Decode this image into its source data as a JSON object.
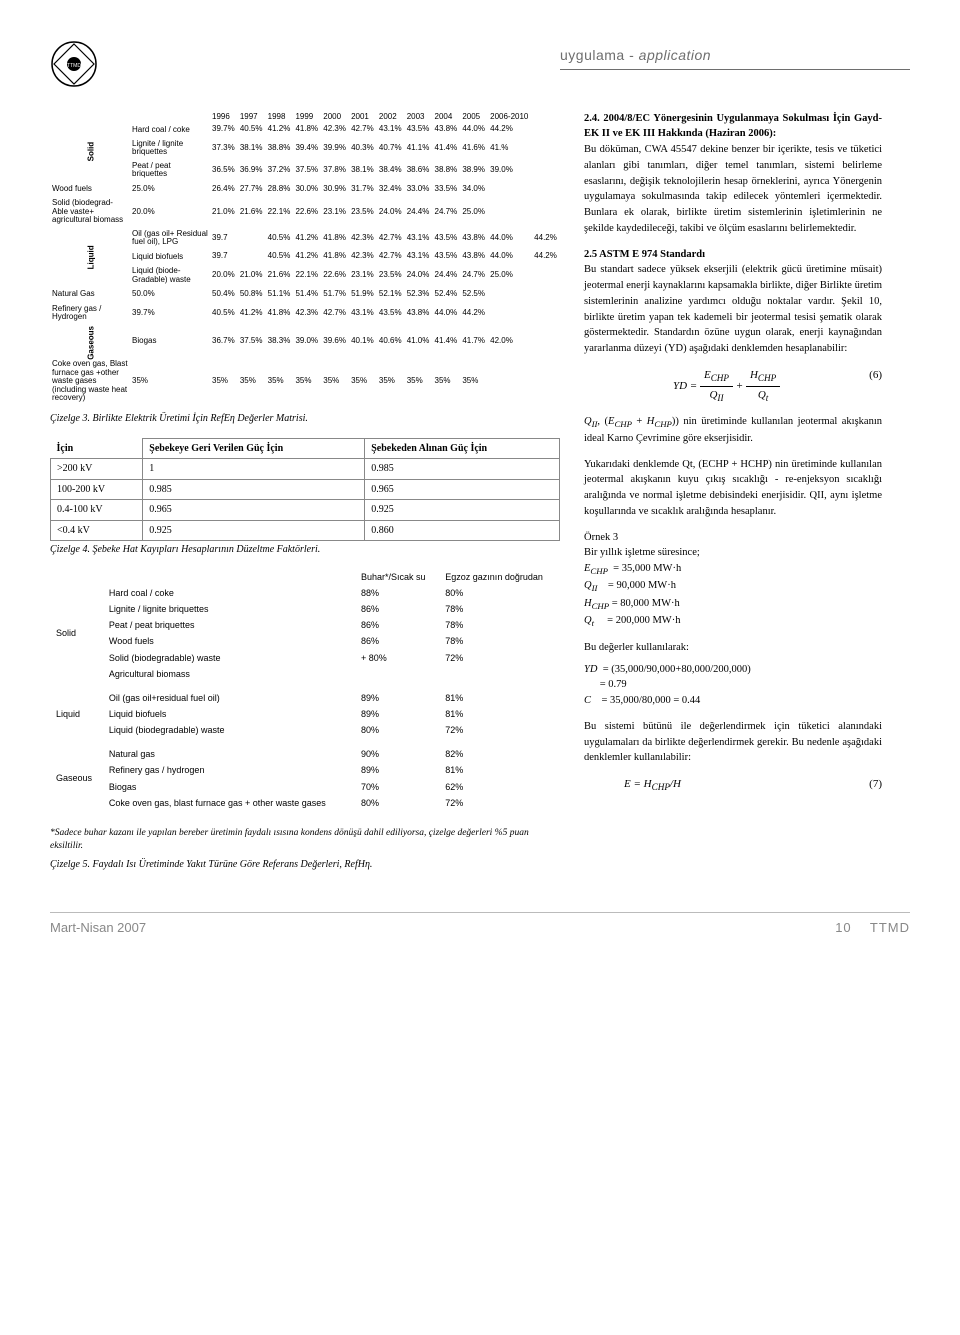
{
  "header": {
    "section": "uygulama",
    "section_it": "application"
  },
  "footer": {
    "left": "Mart-Nisan 2007",
    "page": "10",
    "org": "TTMD"
  },
  "table1": {
    "years": [
      "1996",
      "1997",
      "1998",
      "1999",
      "2000",
      "2001",
      "2002",
      "2003",
      "2004",
      "2005",
      "2006-2010"
    ],
    "groups": [
      {
        "cat": "Solid",
        "rows": [
          {
            "label": "Hard coal / coke",
            "vals": [
              "39.7%",
              "40.5%",
              "41.2%",
              "41.8%",
              "42.3%",
              "42.7%",
              "43.1%",
              "43.5%",
              "43.8%",
              "44.0%",
              "44.2%"
            ]
          },
          {
            "label": "Lignite / lignite briquettes",
            "vals": [
              "37.3%",
              "38.1%",
              "38.8%",
              "39.4%",
              "39.9%",
              "40.3%",
              "40.7%",
              "41.1%",
              "41.4%",
              "41.6%",
              "41.%"
            ]
          },
          {
            "label": "Peat / peat briquettes",
            "vals": [
              "36.5%",
              "36.9%",
              "37.2%",
              "37.5%",
              "37.8%",
              "38.1%",
              "38.4%",
              "38.6%",
              "38.8%",
              "38.9%",
              "39.0%"
            ]
          },
          {
            "label": "Wood fuels",
            "vals": [
              "25.0%",
              "26.4%",
              "27.7%",
              "28.8%",
              "30.0%",
              "30.9%",
              "31.7%",
              "32.4%",
              "33.0%",
              "33.5%",
              "34.0%"
            ]
          },
          {
            "label": "Solid (biodegrad-Able vaste+ agricultural biomass",
            "vals": [
              "20.0%",
              "21.0%",
              "21.6%",
              "22.1%",
              "22.6%",
              "23.1%",
              "23.5%",
              "24.0%",
              "24.4%",
              "24.7%",
              "25.0%"
            ]
          }
        ]
      },
      {
        "cat": "Liquid",
        "rows": [
          {
            "label": "Oil (gas oil+ Residual fuel oil), LPG",
            "vals": [
              "39.7",
              "",
              "40.5%",
              "41.2%",
              "41.8%",
              "42.3%",
              "42.7%",
              "43.1%",
              "43.5%",
              "43.8%",
              "44.0%",
              "44.2%"
            ],
            "skip1": true
          },
          {
            "label": "Liquid biofuels",
            "vals": [
              "39.7",
              "",
              "40.5%",
              "41.2%",
              "41.8%",
              "42.3%",
              "42.7%",
              "43.1%",
              "43.5%",
              "43.8%",
              "44.0%",
              "44.2%"
            ],
            "skip1": true
          },
          {
            "label": "Liquid (biode-Gradable) waste",
            "vals": [
              "20.0%",
              "21.0%",
              "21.6%",
              "22.1%",
              "22.6%",
              "23.1%",
              "23.5%",
              "24.0%",
              "24.4%",
              "24.7%",
              "25.0%"
            ]
          },
          {
            "label": "Natural Gas",
            "vals": [
              "50.0%",
              "50.4%",
              "50.8%",
              "51.1%",
              "51.4%",
              "51.7%",
              "51.9%",
              "52.1%",
              "52.3%",
              "52.4%",
              "52.5%"
            ]
          },
          {
            "label": "Refinery gas / Hydrogen",
            "vals": [
              "39.7%",
              "40.5%",
              "41.2%",
              "41.8%",
              "42.3%",
              "42.7%",
              "43.1%",
              "43.5%",
              "43.8%",
              "44.0%",
              "44.2%"
            ]
          }
        ]
      },
      {
        "cat": "Gaseous",
        "rows": [
          {
            "label": "Biogas",
            "vals": [
              "36.7%",
              "37.5%",
              "38.3%",
              "39.0%",
              "39.6%",
              "40.1%",
              "40.6%",
              "41.0%",
              "41.4%",
              "41.7%",
              "42.0%"
            ]
          },
          {
            "label": "Coke oven gas, Blast furnace gas +other waste gases (including waste heat recovery)",
            "vals": [
              "35%",
              "35%",
              "35%",
              "35%",
              "35%",
              "35%",
              "35%",
              "35%",
              "35%",
              "35%",
              "35%"
            ]
          }
        ]
      }
    ]
  },
  "caption3": "Çizelge 3. Birlikte Elektrik Üretimi İçin RefEη Değerler Matrisi.",
  "table3": {
    "head": {
      "c0": "İçin",
      "c1": "Şebekeye Geri Verilen Güç İçin",
      "c2": "Şebekeden Alınan Güç İçin"
    },
    "rows": [
      {
        "a": ">200 kV",
        "b": "1",
        "c": "0.985"
      },
      {
        "a": "100-200 kV",
        "b": "0.985",
        "c": "0.965"
      },
      {
        "a": "0.4-100 kV",
        "b": "0.965",
        "c": "0.925"
      },
      {
        "a": "<0.4 kV",
        "b": "0.925",
        "c": "0.860"
      }
    ]
  },
  "caption4": "Çizelge 4. Şebeke Hat Kayıpları Hesaplarının Düzeltme Faktörleri.",
  "table5": {
    "head": {
      "c1": "Buhar*/Sıcak su",
      "c2": "Egzoz gazının doğrudan"
    },
    "groups": [
      {
        "cat": "Solid",
        "rows": [
          {
            "a": "Hard coal / coke",
            "b": "88%",
            "c": "80%"
          },
          {
            "a": "Lignite / lignite briquettes",
            "b": "86%",
            "c": "78%"
          },
          {
            "a": "Peat / peat briquettes",
            "b": "86%",
            "c": "78%"
          },
          {
            "a": "Wood fuels",
            "b": "86%",
            "c": "78%"
          },
          {
            "a": "Solid (biodegradable) waste",
            "b": "+ 80%",
            "c": "72%"
          },
          {
            "a": "Agricultural biomass",
            "b": "",
            "c": ""
          }
        ]
      },
      {
        "cat": "Liquid",
        "rows": [
          {
            "a": "Oil (gas oil+residual fuel oil)",
            "b": "89%",
            "c": "81%"
          },
          {
            "a": "Liquid biofuels",
            "b": "89%",
            "c": "81%"
          },
          {
            "a": "Liquid (biodegradable) waste",
            "b": "80%",
            "c": "72%"
          }
        ]
      },
      {
        "cat": "Gaseous",
        "rows": [
          {
            "a": "Natural gas",
            "b": "90%",
            "c": "82%"
          },
          {
            "a": "Refinery gas / hydrogen",
            "b": "89%",
            "c": "81%"
          },
          {
            "a": "Biogas",
            "b": "70%",
            "c": "62%"
          },
          {
            "a": "Coke oven gas, blast furnace gas + other waste gases",
            "b": "80%",
            "c": "72%"
          }
        ]
      }
    ]
  },
  "footnote5": "*Sadece buhar kazanı ile yapılan bereber üretimin faydalı ısısına kondens dönüşü dahil ediliyorsa, çizelge değerleri %5 puan eksiltilir.",
  "caption5": "Çizelge 5. Faydalı Isı Üretiminde Yakıt Türüne Göre Referans Değerleri, RefHη.",
  "right": {
    "h1": "2.4. 2004/8/EC Yönergesinin Uygulanmaya Sokulması İçin Gayd-EK II ve EK III Hakkında (Haziran 2006):",
    "p1": "Bu döküman, CWA 45547 dekine benzer bir içerikte, tesis ve tüketici alanları gibi tanımları, diğer temel tanımları, sistemi belirleme esaslarını, değişik teknolojilerin hesap örneklerini, ayrıca Yönergenin uygulamaya sokulmasında takip edilecek yöntemleri içermektedir. Bunlara ek olarak, birlikte üretim sistemlerinin işletimlerinin ne şekilde kaydedileceği, takibi ve ölçüm esaslarını belirlemektedir.",
    "h2": "2.5 ASTM E 974 Standardı",
    "p2": "Bu standart sadece yüksek ekserjili (elektrik gücü üretimine müsait) jeotermal enerji kaynaklarını kapsamakla birlikte, diğer Birlikte üretim sistemlerinin analizine yardımcı olduğu noktalar vardır. Şekil 10, birlikte üretim yapan tek kademeli bir jeotermal tesisi şematik olarak göstermektedir. Standardın özüne uygun olarak, enerji kaynağından yararlanma düzeyi (YD) aşağıdaki denklemden hesaplanabilir:",
    "eq6num": "(6)",
    "p3a": "Q",
    "p3b": "II",
    "p3c": ", (E",
    "p3d": "CHP",
    "p3e": " + H",
    "p3f": "CHP",
    "p3g": ") nin üretiminde kullanılan jeotermal akışkanın ideal Karno Çevrimine göre ekserjisidir.",
    "p4": "Yukarıdaki denklemde Qt, (ECHP + HCHP) nin üretiminde kullanılan jeotermal akışkanın kuyu çıkış sıcaklığı - re-enjeksyon sıcaklığı aralığında ve normal işletme debisindeki enerjisidir. QII, aynı işletme koşullarında ve sıcaklık aralığında hesaplanır.",
    "ex_h": "Örnek 3",
    "ex_l1": "Bir yıllık işletme süresince;",
    "ex_l2": "E_CHP   = 35,000 MW·h",
    "ex_l3": "Q_II    = 90,000 MW·h",
    "ex_l4": "H_CHP   = 80,000 MW·h",
    "ex_l5": "Q_t     = 200,000 MW·h",
    "use_h": "Bu değerler kullanılarak:",
    "use_l1": "YD  = (35,000/90,000+80,000/200,000)",
    "use_l2": "    = 0.79",
    "use_l3": "C   = 35,000/80,000 = 0.44",
    "p5": "Bu sistemi bütünü ile değerlendirmek için tüketici alanındaki uygulamaları da birlikte değerlendirmek gerekir. Bu nedenle aşağıdaki denklemler kullanılabilir:",
    "eq7": "E = H_CHP/H",
    "eq7num": "(7)"
  }
}
